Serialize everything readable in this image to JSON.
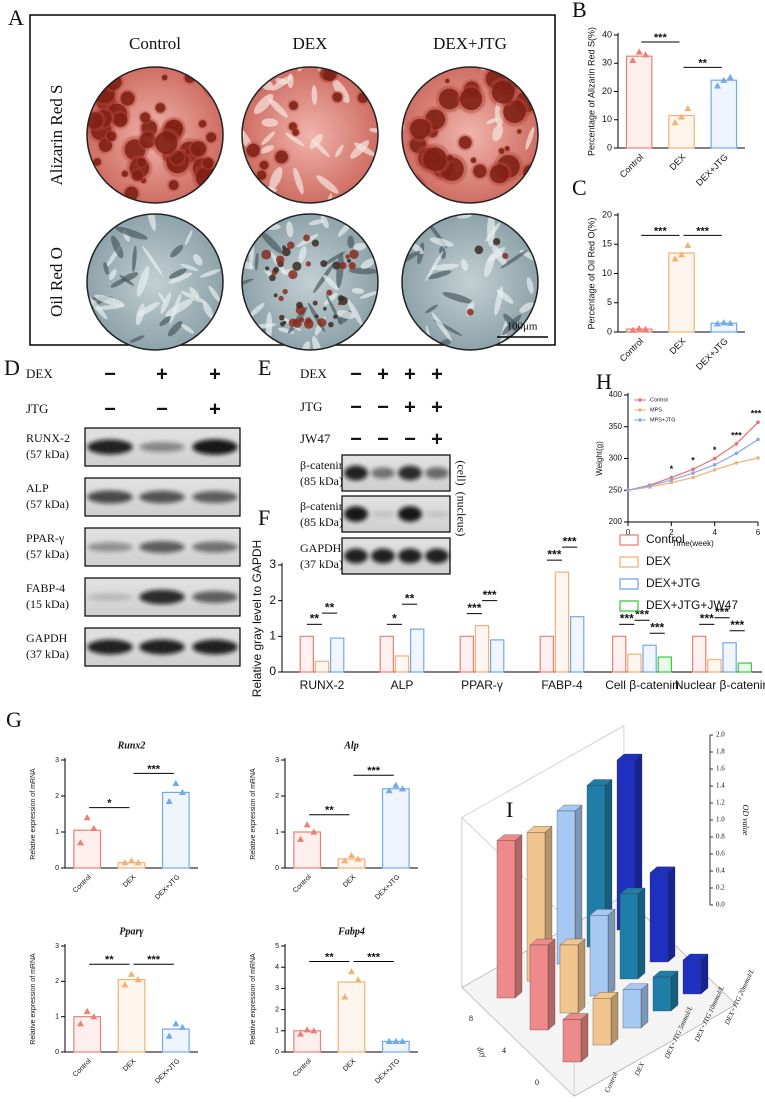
{
  "figure_a": {
    "label": "A",
    "columns": [
      "Control",
      "DEX",
      "DEX+JTG"
    ],
    "rows": [
      "Alizarin Red S",
      "Oil Red O"
    ],
    "scale_bar": "100μm"
  },
  "figure_d": {
    "label": "D",
    "treatments": [
      {
        "name": "DEX",
        "signs": [
          "−",
          "+",
          "+"
        ]
      },
      {
        "name": "JTG",
        "signs": [
          "−",
          "−",
          "+"
        ]
      }
    ],
    "bands": [
      {
        "name": "RUNX-2",
        "weight": "(57 kDa)"
      },
      {
        "name": "ALP",
        "weight": "(57 kDa)"
      },
      {
        "name": "PPAR-γ",
        "weight": "(57 kDa)"
      },
      {
        "name": "FABP-4",
        "weight": "(15 kDa)"
      },
      {
        "name": "GAPDH",
        "weight": "(37 kDa)"
      }
    ]
  },
  "figure_e": {
    "label": "E",
    "treatments": [
      {
        "name": "DEX",
        "signs": [
          "−",
          "+",
          "+",
          "+"
        ]
      },
      {
        "name": "JTG",
        "signs": [
          "−",
          "−",
          "+",
          "+"
        ]
      },
      {
        "name": "JW47",
        "signs": [
          "−",
          "−",
          "−",
          "+"
        ]
      }
    ],
    "bands": [
      {
        "name": "β-catenin",
        "weight": "(85 kDa)",
        "fraction": "(cell)"
      },
      {
        "name": "β-catenin",
        "weight": "(85 kDa)",
        "fraction": "(nucleus)"
      },
      {
        "name": "GAPDH",
        "weight": "(37 kDa)"
      }
    ]
  },
  "figure_g": {
    "label": "G"
  },
  "chart_data": [
    {
      "panel": "B",
      "type": "bar",
      "ylabel": "Percentage of Alizarin Red S(%)",
      "categories": [
        "Control",
        "DEX",
        "DEX+JTG"
      ],
      "values": [
        32.5,
        11.5,
        24
      ],
      "points": [
        [
          31,
          34,
          33
        ],
        [
          9,
          11,
          14
        ],
        [
          22,
          24,
          25
        ]
      ],
      "colors": [
        "#ef7f76",
        "#f5b073",
        "#74a9e8"
      ],
      "ylim": [
        0,
        40
      ],
      "yticks": [
        0,
        10,
        20,
        30,
        40
      ],
      "significance": [
        "***",
        "**"
      ]
    },
    {
      "panel": "C",
      "type": "bar",
      "ylabel": "Percentage of Oil Red O(%)",
      "categories": [
        "Control",
        "DEX",
        "DEX+JTG"
      ],
      "values": [
        0.5,
        13.5,
        1.5
      ],
      "points": [
        [
          0.3,
          0.6,
          0.5
        ],
        [
          12.5,
          13.2,
          14.8
        ],
        [
          1.4,
          1.6,
          1.5
        ]
      ],
      "colors": [
        "#ef7f76",
        "#f5b073",
        "#74a9e8"
      ],
      "ylim": [
        0,
        20
      ],
      "yticks": [
        0,
        5,
        10,
        15,
        20
      ],
      "significance": [
        "***",
        "***"
      ]
    },
    {
      "panel": "H",
      "type": "line",
      "xlabel": "Time(week)",
      "ylabel": "Weight(g)",
      "x": [
        0,
        1,
        2,
        3,
        4,
        5,
        6
      ],
      "xlim": [
        0,
        6
      ],
      "xticks": [
        0,
        2,
        4,
        6
      ],
      "ylim": [
        200,
        400
      ],
      "yticks": [
        200,
        250,
        300,
        350,
        400
      ],
      "series": [
        {
          "name": "Control",
          "color": "#ec6f6f",
          "values": [
            250,
            258,
            270,
            283,
            300,
            323,
            357
          ]
        },
        {
          "name": "MPS",
          "color": "#f5b073",
          "values": [
            250,
            255,
            262,
            270,
            282,
            293,
            301
          ]
        },
        {
          "name": "MPS+JTG",
          "color": "#8aa8ee",
          "values": [
            250,
            257,
            266,
            277,
            290,
            308,
            330
          ]
        }
      ],
      "annotations": [
        "*",
        "*",
        "*",
        "***",
        "***"
      ]
    },
    {
      "panel": "F",
      "type": "grouped_bar",
      "ylabel": "Relative gray level to GAPDH",
      "categories": [
        "RUNX-2",
        "ALP",
        "PPAR-γ",
        "FABP-4",
        "Cell β-catenin",
        "Nuclear β-catenin"
      ],
      "series": [
        {
          "name": "Control",
          "color": "#ef7f76",
          "values": [
            1,
            1,
            1,
            1,
            1,
            1
          ]
        },
        {
          "name": "DEX",
          "color": "#f5b073",
          "values": [
            0.3,
            0.45,
            1.3,
            2.8,
            0.5,
            0.35
          ]
        },
        {
          "name": "DEX+JTG",
          "color": "#74a9e8",
          "values": [
            0.95,
            1.2,
            0.9,
            1.55,
            0.75,
            0.82
          ]
        },
        {
          "name": "DEX+JTG+JW47",
          "color": "#3cc83c",
          "values": [
            null,
            null,
            null,
            null,
            0.42,
            0.25
          ]
        }
      ],
      "ylim": [
        0,
        3
      ],
      "yticks": [
        0,
        1,
        2,
        3
      ],
      "significance": [
        [
          "**",
          "**"
        ],
        [
          "*",
          "**"
        ],
        [
          "***",
          "***"
        ],
        [
          "***",
          "***"
        ],
        [
          "***",
          "***",
          "***"
        ],
        [
          "***",
          "***",
          "***"
        ]
      ]
    },
    {
      "type": "bar",
      "title": "Runx2",
      "ylabel": "Relative expression of mRNA",
      "categories": [
        "Control",
        "DEX",
        "DEX+JTG"
      ],
      "values": [
        1.05,
        0.15,
        2.1
      ],
      "points": [
        [
          0.7,
          1.4,
          1.1
        ],
        [
          0.15,
          0.2,
          0.15
        ],
        [
          1.85,
          2.35,
          2.1
        ]
      ],
      "colors": [
        "#ef7f76",
        "#f5b073",
        "#74a9e8"
      ],
      "ylim": [
        0,
        3
      ],
      "yticks": [
        0,
        1,
        2,
        3
      ],
      "significance": [
        "*",
        "***"
      ]
    },
    {
      "type": "bar",
      "title": "Alp",
      "ylabel": "Relative expression of mRNA",
      "categories": [
        "Control",
        "DEX",
        "DEX+JTG"
      ],
      "values": [
        1.0,
        0.25,
        2.2
      ],
      "points": [
        [
          0.8,
          1.2,
          1.0
        ],
        [
          0.2,
          0.35,
          0.25
        ],
        [
          2.15,
          2.3,
          2.2
        ]
      ],
      "colors": [
        "#ef7f76",
        "#f5b073",
        "#74a9e8"
      ],
      "ylim": [
        0,
        3
      ],
      "yticks": [
        0,
        1,
        2,
        3
      ],
      "significance": [
        "**",
        "***"
      ]
    },
    {
      "type": "bar",
      "title": "Pparγ",
      "ylabel": "Relative expression of mRNA",
      "categories": [
        "Control",
        "DEX",
        "DEX+JTG"
      ],
      "values": [
        1.0,
        2.05,
        0.65
      ],
      "points": [
        [
          0.8,
          1.15,
          1.0
        ],
        [
          1.9,
          2.2,
          2.05
        ],
        [
          0.45,
          0.8,
          0.7
        ]
      ],
      "colors": [
        "#ef7f76",
        "#f5b073",
        "#74a9e8"
      ],
      "ylim": [
        0,
        3
      ],
      "yticks": [
        0,
        1,
        2,
        3
      ],
      "significance": [
        "**",
        "***"
      ]
    },
    {
      "type": "bar",
      "title": "Fabp4",
      "ylabel": "Relative expression of mRNA",
      "categories": [
        "Control",
        "DEX",
        "DEX+JTG"
      ],
      "values": [
        1.0,
        3.3,
        0.5
      ],
      "points": [
        [
          0.85,
          1.05,
          1.0
        ],
        [
          2.6,
          3.8,
          3.4
        ],
        [
          0.5,
          0.5,
          0.5
        ]
      ],
      "colors": [
        "#ef7f76",
        "#f5b073",
        "#74a9e8"
      ],
      "ylim": [
        0,
        5
      ],
      "yticks": [
        0,
        1,
        2,
        3,
        4,
        5
      ],
      "significance": [
        "**",
        "***"
      ]
    },
    {
      "panel": "I",
      "type": "bar3d",
      "xlabel": "day",
      "zlabel": "OD value",
      "categories": [
        "Control",
        "DEX",
        "DEX+JTG 5mmol/L",
        "DEX+JTG 10mmol/L",
        "DEX+JTG 20mmol/L"
      ],
      "colors": [
        "#ee8a8a",
        "#f2c58f",
        "#a6c8f2",
        "#1f7ea8",
        "#1f2fc0"
      ],
      "series": [
        {
          "name": "0",
          "values": [
            0.5,
            0.55,
            0.45,
            0.4,
            0.4
          ]
        },
        {
          "name": "4",
          "values": [
            1.0,
            0.8,
            0.95,
            1.0,
            1.05
          ]
        },
        {
          "name": "8",
          "values": [
            1.85,
            1.75,
            1.8,
            1.9,
            2.0
          ]
        }
      ],
      "zlim": [
        0,
        2
      ],
      "zticks": [
        {
          "value": 0,
          "label": "0.0"
        },
        0.2,
        0.4,
        0.6,
        0.8,
        {
          "value": 1,
          "label": "1.0"
        },
        1.2,
        1.4,
        1.6,
        1.8,
        {
          "value": 2,
          "label": "2.0"
        }
      ]
    }
  ]
}
